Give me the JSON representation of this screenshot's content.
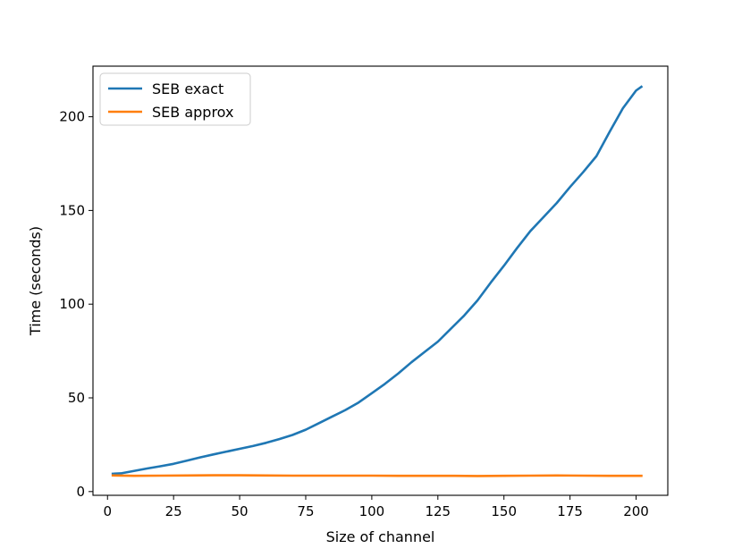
{
  "chart_data": {
    "type": "line",
    "xlabel": "Size of channel",
    "ylabel": "Time (seconds)",
    "xlim": [
      -5.5,
      212
    ],
    "ylim": [
      -2,
      227
    ],
    "xticks": [
      0,
      25,
      50,
      75,
      100,
      125,
      150,
      175,
      200
    ],
    "yticks": [
      0,
      50,
      100,
      150,
      200
    ],
    "grid": false,
    "legend_position": "top-left",
    "series": [
      {
        "name": "SEB exact",
        "color": "#1f77b4",
        "points": [
          [
            2,
            9.5
          ],
          [
            5,
            9.7
          ],
          [
            10,
            11
          ],
          [
            15,
            12.3
          ],
          [
            20,
            13.5
          ],
          [
            25,
            14.8
          ],
          [
            30,
            16.5
          ],
          [
            35,
            18.2
          ],
          [
            40,
            19.8
          ],
          [
            45,
            21.3
          ],
          [
            50,
            22.8
          ],
          [
            55,
            24.3
          ],
          [
            60,
            26
          ],
          [
            65,
            28
          ],
          [
            70,
            30.2
          ],
          [
            75,
            33
          ],
          [
            80,
            36.5
          ],
          [
            85,
            40
          ],
          [
            90,
            43.5
          ],
          [
            95,
            47.5
          ],
          [
            100,
            52.5
          ],
          [
            105,
            57.5
          ],
          [
            110,
            63
          ],
          [
            115,
            69
          ],
          [
            120,
            74.5
          ],
          [
            125,
            80
          ],
          [
            130,
            87
          ],
          [
            135,
            94
          ],
          [
            140,
            102
          ],
          [
            145,
            111.5
          ],
          [
            150,
            120.5
          ],
          [
            155,
            130
          ],
          [
            160,
            139
          ],
          [
            165,
            146.5
          ],
          [
            170,
            154
          ],
          [
            175,
            162.5
          ],
          [
            180,
            170.5
          ],
          [
            185,
            179
          ],
          [
            190,
            192
          ],
          [
            195,
            204.5
          ],
          [
            200,
            214
          ],
          [
            202,
            216
          ]
        ]
      },
      {
        "name": "SEB approx",
        "color": "#ff7f0e",
        "points": [
          [
            2,
            8.6
          ],
          [
            10,
            8.4
          ],
          [
            20,
            8.5
          ],
          [
            30,
            8.6
          ],
          [
            40,
            8.7
          ],
          [
            50,
            8.7
          ],
          [
            60,
            8.6
          ],
          [
            70,
            8.5
          ],
          [
            80,
            8.5
          ],
          [
            90,
            8.5
          ],
          [
            100,
            8.5
          ],
          [
            110,
            8.4
          ],
          [
            120,
            8.4
          ],
          [
            130,
            8.4
          ],
          [
            140,
            8.3
          ],
          [
            150,
            8.4
          ],
          [
            160,
            8.5
          ],
          [
            170,
            8.6
          ],
          [
            180,
            8.5
          ],
          [
            190,
            8.4
          ],
          [
            202,
            8.4
          ]
        ]
      }
    ]
  }
}
